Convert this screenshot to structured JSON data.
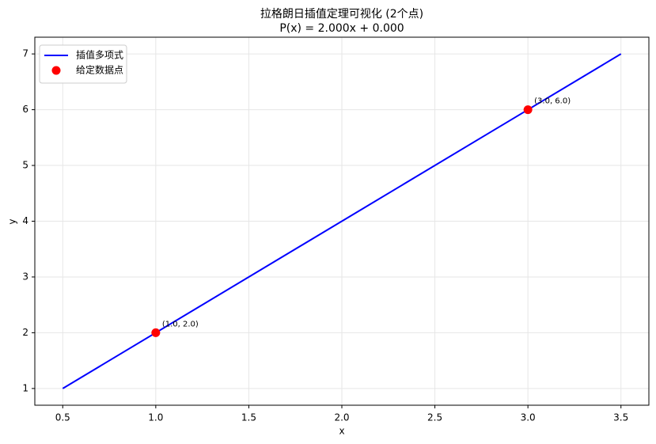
{
  "chart_data": {
    "type": "line",
    "title": "拉格朗日插值定理可视化 (2个点)",
    "subtitle": "P(x) = 2.000x + 0.000",
    "x_label": "x",
    "y_label": "y",
    "xlim": [
      0.35,
      3.65
    ],
    "ylim": [
      0.7,
      7.3
    ],
    "xticks": [
      0.5,
      {
        "value": 1,
        "label": "1.0"
      },
      1.5,
      {
        "value": 2,
        "label": "2.0"
      },
      2.5,
      {
        "value": 3,
        "label": "3.0"
      },
      3.5
    ],
    "yticks": [
      1,
      2,
      3,
      4,
      5,
      6,
      7
    ],
    "grid": true,
    "legend": "upper left",
    "series": [
      {
        "name": "插值多项式",
        "color": "#0000ff",
        "type": "line",
        "x": [
          0.5,
          3.5
        ],
        "values": [
          1,
          7
        ]
      },
      {
        "name": "给定数据点",
        "color": "#ff0000",
        "type": "scatter",
        "x": [
          1,
          3
        ],
        "values": [
          2,
          6
        ],
        "value_labels": [
          "(1.0, 2.0)",
          "(3.0, 6.0)"
        ]
      }
    ]
  }
}
